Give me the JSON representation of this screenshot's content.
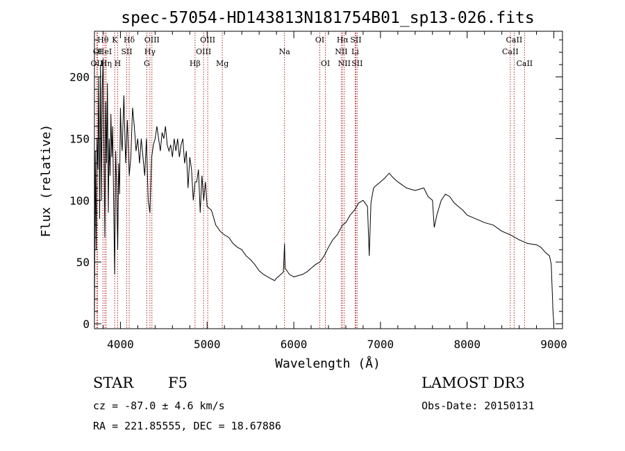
{
  "chart_data": {
    "type": "line",
    "title": "spec-57054-HD143813N181754B01_sp13-026.fits",
    "xlabel": "Wavelength (Å)",
    "ylabel": "Flux (relative)",
    "xlim": [
      3700,
      9100
    ],
    "ylim": [
      -4,
      237
    ],
    "xticks": [
      4000,
      5000,
      6000,
      7000,
      8000,
      9000
    ],
    "yticks": [
      0,
      50,
      100,
      150,
      200
    ],
    "line_color": "#000000",
    "marker_color": "#b22222",
    "series": [
      {
        "x": [
          3700,
          3710,
          3720,
          3730,
          3740,
          3750,
          3760,
          3770,
          3780,
          3790,
          3800,
          3810,
          3820,
          3830,
          3840,
          3850,
          3860,
          3870,
          3880,
          3890,
          3900,
          3910,
          3920,
          3933,
          3945,
          3955,
          3968,
          3980,
          3990,
          4000,
          4010,
          4020,
          4040,
          4060,
          4080,
          4101,
          4120,
          4140,
          4160,
          4180,
          4200,
          4220,
          4240,
          4260,
          4280,
          4300,
          4320,
          4340,
          4360,
          4380,
          4400,
          4420,
          4440,
          4460,
          4480,
          4500,
          4520,
          4540,
          4560,
          4580,
          4600,
          4620,
          4640,
          4660,
          4680,
          4700,
          4720,
          4740,
          4760,
          4780,
          4800,
          4820,
          4840,
          4861,
          4880,
          4900,
          4920,
          4940,
          4960,
          4980,
          5000,
          5050,
          5100,
          5150,
          5200,
          5250,
          5300,
          5350,
          5400,
          5450,
          5500,
          5550,
          5600,
          5650,
          5700,
          5750,
          5780,
          5800,
          5850,
          5880,
          5893,
          5900,
          5920,
          5950,
          6000,
          6050,
          6100,
          6150,
          6200,
          6250,
          6300,
          6350,
          6400,
          6450,
          6500,
          6563,
          6600,
          6650,
          6700,
          6750,
          6800,
          6850,
          6870,
          6890,
          6920,
          6950,
          7000,
          7050,
          7100,
          7150,
          7200,
          7300,
          7400,
          7500,
          7550,
          7600,
          7620,
          7650,
          7700,
          7750,
          7800,
          7850,
          7900,
          7950,
          8000,
          8100,
          8200,
          8300,
          8400,
          8500,
          8600,
          8700,
          8800,
          8850,
          8900,
          8950,
          8970,
          8990,
          9000
        ],
        "values": [
          0,
          140,
          60,
          150,
          125,
          200,
          85,
          210,
          100,
          190,
          215,
          140,
          70,
          180,
          130,
          195,
          90,
          150,
          120,
          170,
          135,
          160,
          105,
          40,
          140,
          115,
          60,
          130,
          105,
          175,
          150,
          140,
          185,
          130,
          165,
          120,
          135,
          175,
          160,
          140,
          150,
          130,
          150,
          135,
          120,
          150,
          100,
          90,
          135,
          145,
          150,
          160,
          150,
          140,
          155,
          150,
          160,
          145,
          140,
          145,
          135,
          150,
          140,
          150,
          135,
          145,
          150,
          130,
          140,
          110,
          135,
          125,
          100,
          115,
          115,
          125,
          90,
          120,
          100,
          115,
          95,
          92,
          80,
          75,
          72,
          70,
          65,
          62,
          60,
          55,
          52,
          48,
          43,
          40,
          38,
          36,
          35,
          37,
          40,
          42,
          65,
          45,
          43,
          40,
          38,
          39,
          40,
          42,
          45,
          48,
          50,
          55,
          62,
          68,
          72,
          80,
          82,
          88,
          92,
          98,
          100,
          95,
          55,
          98,
          110,
          112,
          115,
          118,
          122,
          118,
          115,
          110,
          108,
          110,
          103,
          100,
          78,
          88,
          100,
          105,
          103,
          98,
          95,
          92,
          88,
          85,
          82,
          80,
          75,
          72,
          68,
          65,
          64,
          62,
          58,
          55,
          48,
          10,
          0
        ]
      }
    ],
    "lines": [
      {
        "label": "OII",
        "x": 3727,
        "row": 3
      },
      {
        "label": "OI",
        "x": 3737,
        "row": 2
      },
      {
        "label": "Hθ",
        "x": 3798,
        "row": 1
      },
      {
        "label": "HeI",
        "x": 3820,
        "row": 2
      },
      {
        "label": "Hη",
        "x": 3835,
        "row": 3
      },
      {
        "label": "K",
        "x": 3934,
        "row": 1
      },
      {
        "label": "H",
        "x": 3968,
        "row": 3
      },
      {
        "label": "SII",
        "x": 4072,
        "row": 2
      },
      {
        "label": "Hδ",
        "x": 4101,
        "row": 1
      },
      {
        "label": "G",
        "x": 4304,
        "row": 3
      },
      {
        "label": "Hγ",
        "x": 4340,
        "row": 2
      },
      {
        "label": "OIII",
        "x": 4363,
        "row": 1
      },
      {
        "label": "Hβ",
        "x": 4861,
        "row": 3
      },
      {
        "label": "OIII",
        "x": 4959,
        "row": 2
      },
      {
        "label": "OIII",
        "x": 5007,
        "row": 1
      },
      {
        "label": "Mg",
        "x": 5175,
        "row": 3
      },
      {
        "label": "Na",
        "x": 5893,
        "row": 2
      },
      {
        "label": "OI",
        "x": 6300,
        "row": 1
      },
      {
        "label": "OI",
        "x": 6364,
        "row": 3
      },
      {
        "label": "NII",
        "x": 6548,
        "row": 2
      },
      {
        "label": "Hα",
        "x": 6563,
        "row": 1
      },
      {
        "label": "NII",
        "x": 6583,
        "row": 3
      },
      {
        "label": "SII",
        "x": 6716,
        "row": 1
      },
      {
        "label": "Li",
        "x": 6708,
        "row": 2
      },
      {
        "label": "SII",
        "x": 6731,
        "row": 3
      },
      {
        "label": "CaII",
        "x": 8498,
        "row": 2
      },
      {
        "label": "CaII",
        "x": 8542,
        "row": 1
      },
      {
        "label": "CaII",
        "x": 8662,
        "row": 3
      }
    ]
  },
  "info": {
    "class_label": "STAR",
    "subclass": "F5",
    "survey": "LAMOST DR3",
    "cz": "cz = -87.0 ± 4.6 km/s",
    "obs_date": "Obs-Date: 20150131",
    "coords": "RA = 221.85555, DEC =  18.67886"
  }
}
